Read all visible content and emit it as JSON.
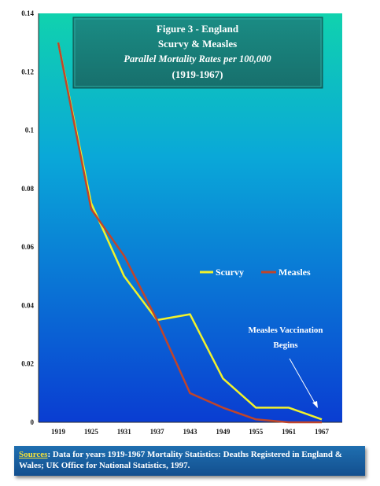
{
  "chart_data": {
    "type": "line",
    "title_lines": [
      "Figure 3 - England",
      "Scurvy & Measles",
      "Parallel Mortality Rates per 100,000",
      "(1919-1967)"
    ],
    "x": [
      1919,
      1925,
      1931,
      1937,
      1943,
      1949,
      1955,
      1961,
      1967
    ],
    "x_ticks": [
      "1919",
      "1925",
      "1931",
      "1937",
      "1943",
      "1949",
      "1955",
      "1961",
      "1967"
    ],
    "y_ticks": [
      "0",
      "0.02",
      "0.04",
      "0.06",
      "0.08",
      "0.1",
      "0.12",
      "0.14"
    ],
    "ylim": [
      0,
      0.14
    ],
    "series": [
      {
        "name": "Scurvy",
        "color": "#f2f22b",
        "values": [
          0.13,
          0.075,
          0.05,
          0.035,
          0.037,
          0.015,
          0.005,
          0.005,
          0.001
        ]
      },
      {
        "name": "Measles",
        "color": "#c0452a",
        "values": [
          0.13,
          0.073,
          0.057,
          0.035,
          0.01,
          0.005,
          0.001,
          0.0,
          0.0
        ]
      }
    ],
    "legend_labels": [
      "Scurvy",
      "Measles"
    ],
    "annotation_lines": [
      "Measles Vaccination",
      "Begins"
    ],
    "grid": false
  },
  "source": {
    "label": "Sources",
    "text": ": Data for years 1919-1967 Mortality Statistics: Deaths Registered in England & Wales;  UK Office for National Statistics, 1997."
  },
  "colors": {
    "plot_top": "#0fd0b0",
    "plot_bottom": "#0a3fd0",
    "title_box": "#1d8a80",
    "scurvy": "#f2f22b",
    "measles": "#c0452a"
  }
}
